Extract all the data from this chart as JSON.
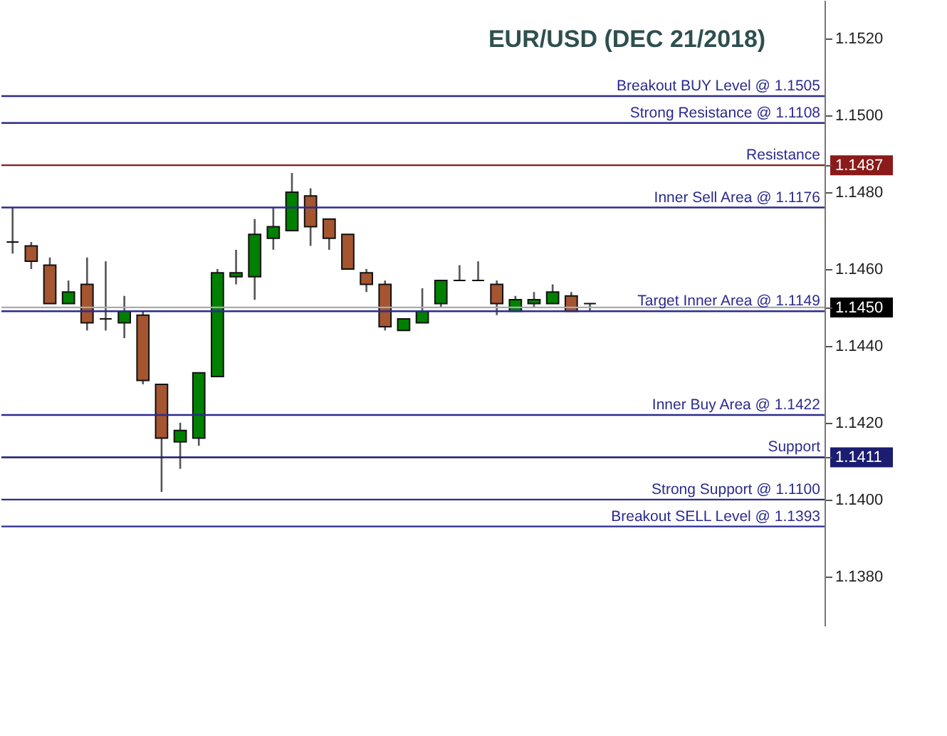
{
  "chart_data": {
    "type": "candlestick",
    "title": "EUR/USD (DEC 21/2018)",
    "categories": [
      null,
      null,
      null,
      null,
      null,
      null,
      null,
      null,
      null,
      null,
      null,
      null,
      null,
      null,
      null,
      null,
      null,
      null,
      null,
      null,
      null,
      null,
      null,
      null,
      null,
      null,
      null,
      null,
      null,
      null,
      null,
      null,
      null,
      null,
      null,
      null,
      null,
      null,
      null,
      null,
      null,
      null,
      null,
      null
    ],
    "ohlc": [
      [
        1.1467,
        1.1476,
        1.1464,
        1.1467
      ],
      [
        1.1466,
        1.1467,
        1.146,
        1.1462
      ],
      [
        1.1461,
        1.1463,
        1.1451,
        1.1451
      ],
      [
        1.1451,
        1.1457,
        1.1451,
        1.1454
      ],
      [
        1.1456,
        1.1463,
        1.1444,
        1.1446
      ],
      [
        1.1447,
        1.1462,
        1.1444,
        1.1447
      ],
      [
        1.1446,
        1.1453,
        1.1442,
        1.1449
      ],
      [
        1.1448,
        1.1449,
        1.143,
        1.1431
      ],
      [
        1.143,
        1.143,
        1.1402,
        1.1416
      ],
      [
        1.1415,
        1.142,
        1.1408,
        1.1418
      ],
      [
        1.1416,
        1.1433,
        1.1414,
        1.1433
      ],
      [
        1.1432,
        1.146,
        1.1432,
        1.1459
      ],
      [
        1.1458,
        1.1465,
        1.1456,
        1.1459
      ],
      [
        1.1458,
        1.1473,
        1.1452,
        1.1469
      ],
      [
        1.1468,
        1.1476,
        1.1465,
        1.1471
      ],
      [
        1.147,
        1.1485,
        1.147,
        1.148
      ],
      [
        1.1479,
        1.1481,
        1.1466,
        1.1471
      ],
      [
        1.1473,
        1.1473,
        1.1465,
        1.1468
      ],
      [
        1.1469,
        1.1469,
        1.146,
        1.146
      ],
      [
        1.1459,
        1.146,
        1.1454,
        1.1456
      ],
      [
        1.1456,
        1.1457,
        1.1444,
        1.1445
      ],
      [
        1.1444,
        1.1447,
        1.1444,
        1.1447
      ],
      [
        1.1446,
        1.1455,
        1.1446,
        1.1449
      ],
      [
        1.1451,
        1.1457,
        1.145,
        1.1457
      ],
      [
        1.1457,
        1.1461,
        1.1457,
        1.1457
      ],
      [
        1.1457,
        1.1462,
        1.1457,
        1.1457
      ],
      [
        1.1456,
        1.1457,
        1.1448,
        1.1451
      ],
      [
        1.1449,
        1.1453,
        1.1449,
        1.1452
      ],
      [
        1.1451,
        1.1454,
        1.145,
        1.1452
      ],
      [
        1.1451,
        1.1456,
        1.1451,
        1.1454
      ],
      [
        1.1453,
        1.1454,
        1.1449,
        1.1449
      ],
      [
        1.1451,
        1.1451,
        1.1449,
        1.1451
      ],
      null,
      null,
      null,
      null,
      null,
      null,
      null,
      null,
      null,
      null,
      null,
      null
    ],
    "ylim": [
      1.1367,
      1.153
    ],
    "yticks": [
      {
        "value": 1.152,
        "label": "1.1520"
      },
      {
        "value": 1.15,
        "label": "1.1500"
      },
      {
        "value": 1.1487,
        "label": "1.1487"
      },
      {
        "value": 1.148,
        "label": "1.1480"
      },
      {
        "value": 1.146,
        "label": "1.1460"
      },
      {
        "value": 1.145,
        "label": "1.1450"
      },
      {
        "value": 1.144,
        "label": "1.1440"
      },
      {
        "value": 1.142,
        "label": "1.1420"
      },
      {
        "value": 1.1411,
        "label": "1.1411"
      },
      {
        "value": 1.14,
        "label": "1.1400"
      },
      {
        "value": 1.138,
        "label": "1.1380"
      }
    ],
    "tick_labels": "y",
    "grid": false,
    "ref_lines": [
      {
        "axis": "y",
        "value": 1.1505,
        "label": "Breakout BUY Level @ 1.1505",
        "color": "#2b2b8f"
      },
      {
        "axis": "y",
        "value": 1.1498,
        "label": "Strong Resistance @  1.1108",
        "color": "#2b2b8f"
      },
      {
        "axis": "y",
        "value": 1.1487,
        "label": "Resistance",
        "color": "#8b1a1a"
      },
      {
        "axis": "y",
        "value": 1.1476,
        "label": "Inner Sell Area @ 1.1176",
        "color": "#2b2b8f"
      },
      {
        "axis": "y",
        "value": 1.145,
        "color": "#aaaaaa"
      },
      {
        "axis": "y",
        "value": 1.1449,
        "label": "Target Inner Area @ 1.1149",
        "color": "#2b2b8f"
      },
      {
        "axis": "y",
        "value": 1.1422,
        "label": "Inner Buy Area  @ 1.1422",
        "color": "#2b2b8f"
      },
      {
        "axis": "y",
        "value": 1.1411,
        "label": "Support",
        "color": "#1c1c70"
      },
      {
        "axis": "y",
        "value": 1.14,
        "label": "Strong Support  @  1.1100",
        "color": "#2b2b8f"
      },
      {
        "axis": "y",
        "value": 1.1393,
        "label": "Breakout SELL Level  @ 1.1393",
        "color": "#2b2b8f"
      }
    ]
  }
}
